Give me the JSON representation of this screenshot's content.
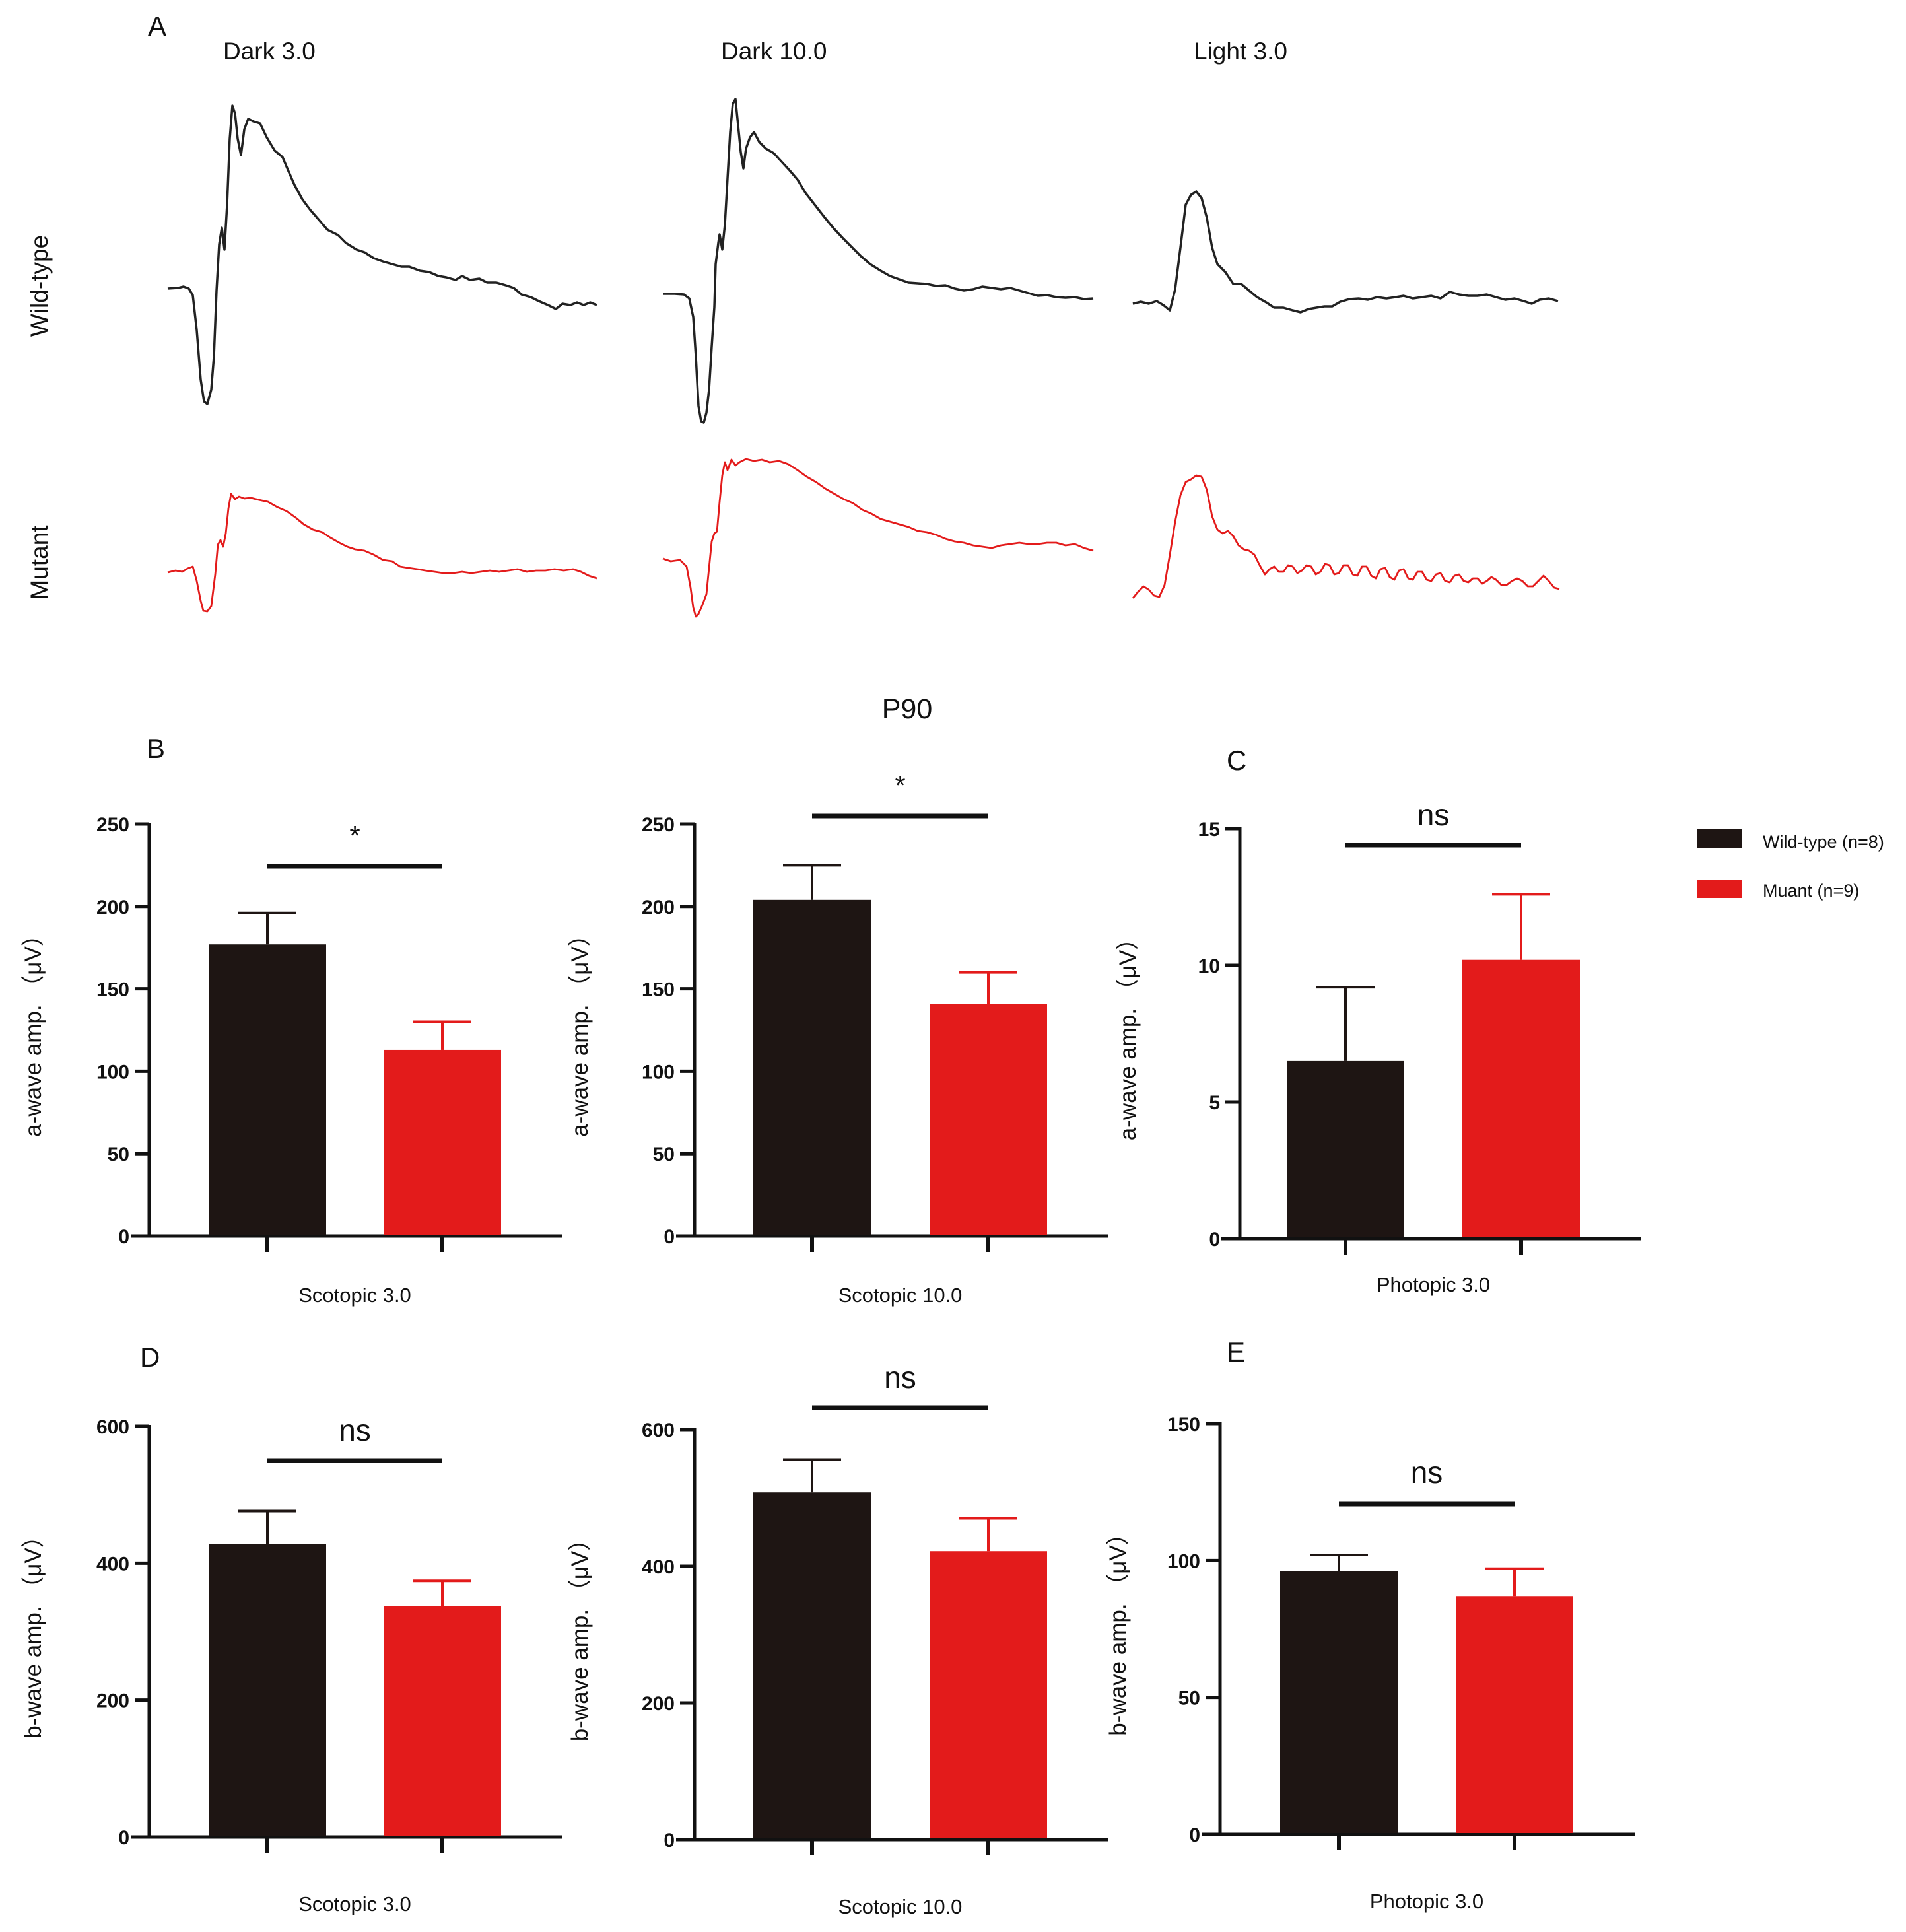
{
  "colors": {
    "wild_type": "#1e1513",
    "mutant": "#e31b1b",
    "axis": "#111111"
  },
  "figure_title": "P90",
  "panels": {
    "A": "A",
    "B": "B",
    "C": "C",
    "D": "D",
    "E": "E"
  },
  "legend": [
    {
      "label": "Wild-type (n=8)",
      "color": "#1e1513"
    },
    {
      "label": "Muant (n=9)",
      "color": "#e31b1b"
    }
  ],
  "traces": {
    "conditions": [
      "Dark 3.0",
      "Dark 10.0",
      "Light 3.0"
    ],
    "rows": [
      "Wild-type",
      "Mutant"
    ]
  },
  "chart_data": [
    {
      "type": "bar",
      "id": "scot3-a",
      "xlabel": "Scotopic 3.0",
      "ylabel": "a-wave amp.  （μV）",
      "ylim": [
        0,
        250
      ],
      "yticks": [
        0,
        50,
        100,
        150,
        200,
        250
      ],
      "categories": [
        "Wild-type (n=8)",
        "Muant (n=9)"
      ],
      "values": [
        177,
        113
      ],
      "errors": [
        19,
        17
      ],
      "significance": "*"
    },
    {
      "type": "bar",
      "id": "scot10-a",
      "xlabel": "Scotopic 10.0",
      "ylabel": "a-wave amp.  （μV）",
      "ylim": [
        0,
        250
      ],
      "yticks": [
        0,
        50,
        100,
        150,
        200,
        250
      ],
      "categories": [
        "Wild-type (n=8)",
        "Muant (n=9)"
      ],
      "values": [
        204,
        141
      ],
      "errors": [
        21,
        19
      ],
      "significance": "*"
    },
    {
      "type": "bar",
      "id": "phot3-a",
      "xlabel": "Photopic 3.0",
      "ylabel": "a-wave amp.  （μV）",
      "ylim": [
        0,
        15
      ],
      "yticks": [
        0,
        5,
        10,
        15
      ],
      "categories": [
        "Wild-type (n=8)",
        "Muant (n=9)"
      ],
      "values": [
        6.5,
        10.2
      ],
      "errors": [
        2.7,
        2.4
      ],
      "significance": "ns"
    },
    {
      "type": "bar",
      "id": "scot3-b",
      "xlabel": "Scotopic 3.0",
      "ylabel": "b-wave amp.  （μV）",
      "ylim": [
        0,
        600
      ],
      "yticks": [
        0,
        200,
        400,
        600
      ],
      "categories": [
        "Wild-type (n=8)",
        "Muant (n=9)"
      ],
      "values": [
        428,
        337
      ],
      "errors": [
        48,
        37
      ],
      "significance": "ns"
    },
    {
      "type": "bar",
      "id": "scot10-b",
      "xlabel": "Scotopic 10.0",
      "ylabel": "b-wave amp.  （μV）",
      "ylim": [
        0,
        600
      ],
      "yticks": [
        0,
        200,
        400,
        600
      ],
      "categories": [
        "Wild-type (n=8)",
        "Muant (n=9)"
      ],
      "values": [
        508,
        422
      ],
      "errors": [
        48,
        48
      ],
      "significance": "ns"
    },
    {
      "type": "bar",
      "id": "phot3-b",
      "xlabel": "Photopic 3.0",
      "ylabel": "b-wave amp.  （μV）",
      "ylim": [
        0,
        150
      ],
      "yticks": [
        0,
        50,
        100,
        150
      ],
      "categories": [
        "Wild-type (n=8)",
        "Muant (n=9)"
      ],
      "values": [
        96,
        87
      ],
      "errors": [
        6,
        10
      ],
      "significance": "ns"
    }
  ]
}
